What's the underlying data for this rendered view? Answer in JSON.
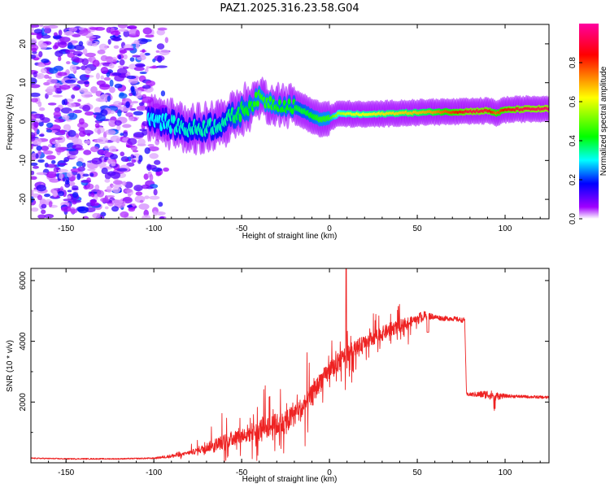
{
  "title": "PAZ1.2025.316.23.58.G04",
  "chart_data": [
    {
      "type": "heatmap",
      "name": "spectrogram",
      "xlabel": "Height of straight line (km)",
      "ylabel": "Frequency (Hz)",
      "xlim": [
        -170,
        125
      ],
      "ylim": [
        -25,
        25
      ],
      "xticks": [
        -150,
        -100,
        -50,
        0,
        50,
        100
      ],
      "yticks": [
        -20,
        -10,
        0,
        10,
        20
      ],
      "colorbar": {
        "label": "Normalized spectral amplitude",
        "range": [
          0,
          1
        ],
        "ticks": [
          0.0,
          0.2,
          0.4,
          0.6,
          0.8
        ],
        "tick_labels": [
          "0.0",
          "0.2",
          "0.4",
          "0.6",
          "0.8"
        ],
        "colormap": [
          "#ffffff",
          "#a000ff",
          "#0000ff",
          "#00ffff",
          "#00ff00",
          "#ffff00",
          "#ff0000",
          "#ff00a0"
        ]
      },
      "ridge": {
        "x": [
          -102,
          -95,
          -88,
          -80,
          -72,
          -65,
          -58,
          -52,
          -46,
          -40,
          -34,
          -28,
          -22,
          -16,
          -10,
          -5,
          0,
          5,
          10,
          20,
          30,
          40,
          50,
          60,
          70,
          80,
          90,
          95,
          100,
          110,
          125
        ],
        "y": [
          1.5,
          0,
          -1,
          -2,
          -1.5,
          -1,
          0.5,
          2,
          4,
          6,
          5,
          4.5,
          4,
          3,
          1.5,
          0.5,
          0.8,
          2,
          2,
          1.8,
          2,
          2.2,
          2.3,
          2.5,
          2.5,
          2.6,
          2.8,
          2.2,
          3,
          3.2,
          3.3
        ],
        "amplitude": [
          0.3,
          0.3,
          0.32,
          0.33,
          0.34,
          0.33,
          0.35,
          0.4,
          0.42,
          0.45,
          0.45,
          0.42,
          0.42,
          0.4,
          0.42,
          0.45,
          0.45,
          0.55,
          0.6,
          0.62,
          0.64,
          0.66,
          0.68,
          0.72,
          0.8,
          0.92,
          0.9,
          0.75,
          0.85,
          0.92,
          0.95
        ]
      },
      "noise_region": [
        -170,
        -90
      ]
    },
    {
      "type": "line",
      "name": "snr",
      "xlabel": "Height of straight line (km)",
      "ylabel": "SNR (10 * v/v)",
      "xlim": [
        -170,
        125
      ],
      "ylim": [
        0,
        6400
      ],
      "xticks": [
        -150,
        -100,
        -50,
        0,
        50,
        100
      ],
      "yticks": [
        2000,
        4000,
        6000
      ],
      "color": "#ee2222",
      "x": [
        -170,
        -150,
        -120,
        -100,
        -90,
        -82,
        -75,
        -68,
        -60,
        -52,
        -45,
        -38,
        -30,
        -25,
        -20,
        -15,
        -10,
        -5,
        0,
        5,
        10,
        15,
        20,
        25,
        30,
        35,
        40,
        45,
        50,
        55,
        60,
        65,
        70,
        75,
        77,
        78,
        80,
        90,
        95,
        100,
        110,
        125
      ],
      "y": [
        150,
        130,
        130,
        150,
        220,
        300,
        400,
        550,
        700,
        850,
        1000,
        1150,
        1250,
        1300,
        1600,
        1800,
        2200,
        2700,
        3000,
        3300,
        3600,
        3800,
        3950,
        4100,
        4250,
        4400,
        4500,
        4600,
        4750,
        4850,
        4800,
        4750,
        4750,
        4700,
        4700,
        2250,
        2250,
        2250,
        2200,
        2200,
        2180,
        2150
      ],
      "noise_amp": [
        20,
        20,
        20,
        25,
        60,
        150,
        300,
        500,
        700,
        800,
        900,
        1000,
        1100,
        1100,
        1100,
        1100,
        1000,
        900,
        900,
        900,
        800,
        700,
        700,
        700,
        700,
        650,
        600,
        600,
        200,
        150,
        80,
        80,
        80,
        80,
        80,
        60,
        60,
        150,
        150,
        60,
        50,
        50
      ]
    }
  ]
}
